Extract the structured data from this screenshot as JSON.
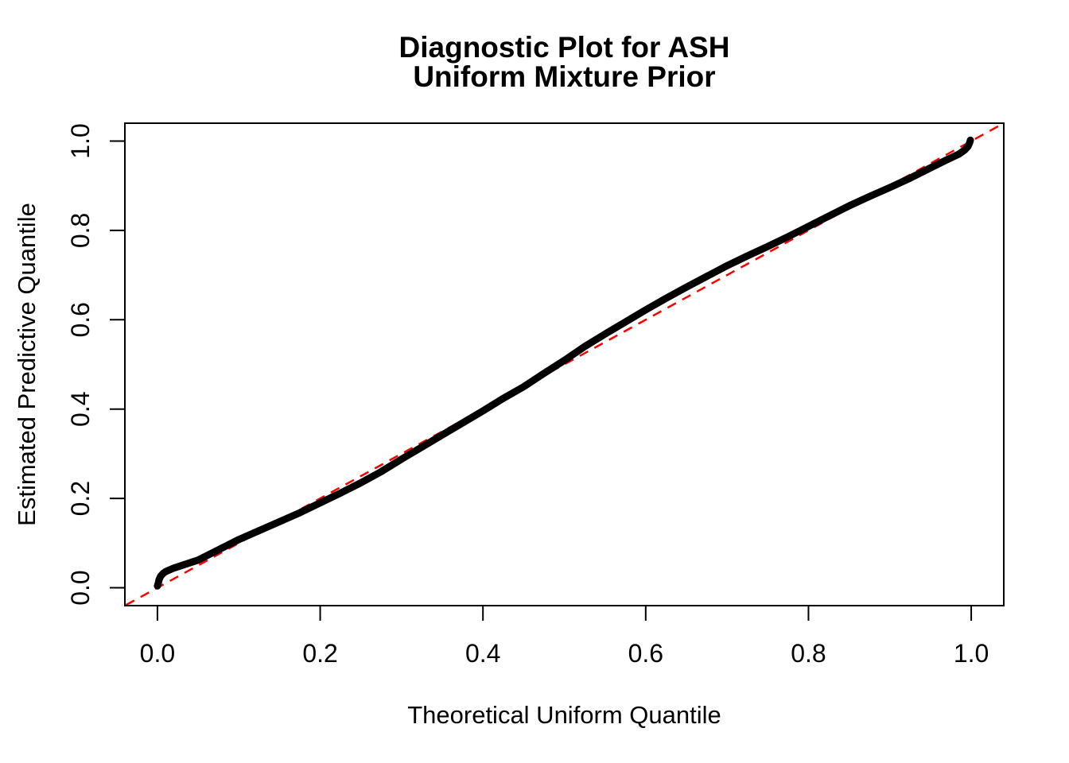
{
  "page": {
    "background": "#ffffff"
  },
  "chart_data": {
    "type": "line",
    "title_line1": "Diagnostic Plot for ASH",
    "title_line2": "Uniform Mixture Prior",
    "xlabel": "Theoretical Uniform Quantile",
    "ylabel": "Estimated Predictive Quantile",
    "xlim": [
      -0.04,
      1.04
    ],
    "ylim": [
      -0.04,
      1.04
    ],
    "xticks": [
      "0.0",
      "0.2",
      "0.4",
      "0.6",
      "0.8",
      "1.0"
    ],
    "yticks": [
      "0.0",
      "0.2",
      "0.4",
      "0.6",
      "0.8",
      "1.0"
    ],
    "xtick_values": [
      0.0,
      0.2,
      0.4,
      0.6,
      0.8,
      1.0
    ],
    "ytick_values": [
      0.0,
      0.2,
      0.4,
      0.6,
      0.8,
      1.0
    ],
    "grid": false,
    "legend": "none",
    "colors": {
      "curve": "#000000",
      "reference_line": "#ff0000",
      "axis": "#000000",
      "background": "#ffffff"
    },
    "series": [
      {
        "name": "estimated-predictive-quantile-curve",
        "type": "line",
        "style": "solid",
        "color": "#000000",
        "stroke_width": 9,
        "points": [
          [
            0.0,
            0.004
          ],
          [
            0.001,
            0.01
          ],
          [
            0.002,
            0.018
          ],
          [
            0.004,
            0.026
          ],
          [
            0.007,
            0.032
          ],
          [
            0.01,
            0.036
          ],
          [
            0.02,
            0.044
          ],
          [
            0.03,
            0.05
          ],
          [
            0.04,
            0.056
          ],
          [
            0.05,
            0.062
          ],
          [
            0.075,
            0.085
          ],
          [
            0.1,
            0.108
          ],
          [
            0.125,
            0.128
          ],
          [
            0.15,
            0.148
          ],
          [
            0.175,
            0.168
          ],
          [
            0.2,
            0.19
          ],
          [
            0.225,
            0.212
          ],
          [
            0.25,
            0.235
          ],
          [
            0.275,
            0.26
          ],
          [
            0.3,
            0.288
          ],
          [
            0.325,
            0.315
          ],
          [
            0.35,
            0.342
          ],
          [
            0.375,
            0.369
          ],
          [
            0.4,
            0.396
          ],
          [
            0.425,
            0.424
          ],
          [
            0.45,
            0.45
          ],
          [
            0.475,
            0.48
          ],
          [
            0.5,
            0.509
          ],
          [
            0.525,
            0.54
          ],
          [
            0.55,
            0.568
          ],
          [
            0.575,
            0.595
          ],
          [
            0.6,
            0.622
          ],
          [
            0.625,
            0.648
          ],
          [
            0.65,
            0.673
          ],
          [
            0.675,
            0.697
          ],
          [
            0.7,
            0.721
          ],
          [
            0.725,
            0.743
          ],
          [
            0.75,
            0.764
          ],
          [
            0.775,
            0.786
          ],
          [
            0.8,
            0.809
          ],
          [
            0.825,
            0.832
          ],
          [
            0.85,
            0.855
          ],
          [
            0.875,
            0.876
          ],
          [
            0.9,
            0.896
          ],
          [
            0.925,
            0.917
          ],
          [
            0.95,
            0.94
          ],
          [
            0.97,
            0.958
          ],
          [
            0.985,
            0.971
          ],
          [
            0.992,
            0.98
          ],
          [
            0.996,
            0.988
          ],
          [
            0.998,
            0.996
          ],
          [
            0.999,
            1.002
          ]
        ]
      },
      {
        "name": "identity-reference-line",
        "type": "line",
        "style": "dashed",
        "color": "#ff0000",
        "stroke_width": 2.5,
        "points": [
          [
            -0.0387,
            -0.0387
          ],
          [
            1.0394,
            1.0394
          ]
        ]
      }
    ]
  }
}
